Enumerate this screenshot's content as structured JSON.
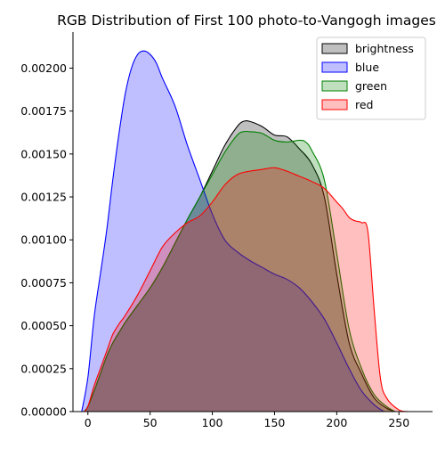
{
  "chart_data": {
    "type": "area",
    "title": "RGB Distribution of First 100 photo-to-Vangogh images",
    "xlabel": "",
    "ylabel": "",
    "xlim": [
      -12,
      277
    ],
    "ylim": [
      0,
      0.00221
    ],
    "grid": false,
    "legend_position": "top-right",
    "x_ticks": [
      0,
      50,
      100,
      150,
      200,
      250
    ],
    "y_ticks": [
      0.0,
      0.00025,
      0.0005,
      0.00075,
      0.001,
      0.00125,
      0.0015,
      0.00175,
      0.002
    ],
    "y_tick_labels": [
      "0.00000",
      "0.00025",
      "0.00050",
      "0.00075",
      "0.00100",
      "0.00125",
      "0.00150",
      "0.00175",
      "0.00200"
    ],
    "x_tick_labels": [
      "0",
      "50",
      "100",
      "150",
      "200",
      "250"
    ],
    "series": [
      {
        "name": "brightness",
        "color": "#000000",
        "points": [
          [
            -3,
            0
          ],
          [
            0,
            3e-05
          ],
          [
            5,
            0.00012
          ],
          [
            10,
            0.00022
          ],
          [
            15,
            0.00032
          ],
          [
            20,
            0.0004
          ],
          [
            25,
            0.00046
          ],
          [
            30,
            0.00052
          ],
          [
            40,
            0.00062
          ],
          [
            50,
            0.00072
          ],
          [
            60,
            0.00084
          ],
          [
            70,
            0.00098
          ],
          [
            80,
            0.00112
          ],
          [
            90,
            0.00125
          ],
          [
            100,
            0.0014
          ],
          [
            110,
            0.00155
          ],
          [
            120,
            0.00166
          ],
          [
            125,
            0.00169
          ],
          [
            130,
            0.00169
          ],
          [
            140,
            0.00166
          ],
          [
            150,
            0.00161
          ],
          [
            160,
            0.0016
          ],
          [
            170,
            0.00153
          ],
          [
            180,
            0.00144
          ],
          [
            190,
            0.00125
          ],
          [
            200,
            0.0008
          ],
          [
            210,
            0.0004
          ],
          [
            220,
            0.00022
          ],
          [
            230,
            8e-05
          ],
          [
            240,
            2e-05
          ],
          [
            247,
            0
          ]
        ]
      },
      {
        "name": "blue",
        "color": "#0000ff",
        "points": [
          [
            -5,
            0
          ],
          [
            0,
            0.0002
          ],
          [
            5,
            0.00055
          ],
          [
            10,
            0.0008
          ],
          [
            15,
            0.00105
          ],
          [
            20,
            0.00135
          ],
          [
            25,
            0.00162
          ],
          [
            30,
            0.00185
          ],
          [
            35,
            0.002
          ],
          [
            40,
            0.00208
          ],
          [
            45,
            0.0021
          ],
          [
            50,
            0.00208
          ],
          [
            55,
            0.00203
          ],
          [
            60,
            0.00194
          ],
          [
            70,
            0.00178
          ],
          [
            80,
            0.00155
          ],
          [
            90,
            0.00135
          ],
          [
            100,
            0.00115
          ],
          [
            110,
            0.001
          ],
          [
            120,
            0.00093
          ],
          [
            130,
            0.00088
          ],
          [
            140,
            0.00084
          ],
          [
            150,
            0.0008
          ],
          [
            160,
            0.00077
          ],
          [
            170,
            0.00072
          ],
          [
            180,
            0.00064
          ],
          [
            190,
            0.00054
          ],
          [
            200,
            0.0004
          ],
          [
            210,
            0.00025
          ],
          [
            220,
            0.00012
          ],
          [
            230,
            4e-05
          ],
          [
            238,
            0
          ]
        ]
      },
      {
        "name": "green",
        "color": "#008000",
        "points": [
          [
            -3,
            0
          ],
          [
            0,
            3e-05
          ],
          [
            5,
            0.00012
          ],
          [
            10,
            0.00022
          ],
          [
            15,
            0.00032
          ],
          [
            20,
            0.0004
          ],
          [
            25,
            0.00046
          ],
          [
            30,
            0.00052
          ],
          [
            40,
            0.00062
          ],
          [
            50,
            0.00072
          ],
          [
            60,
            0.00084
          ],
          [
            70,
            0.00098
          ],
          [
            80,
            0.00112
          ],
          [
            90,
            0.00125
          ],
          [
            100,
            0.00138
          ],
          [
            110,
            0.00151
          ],
          [
            120,
            0.00161
          ],
          [
            125,
            0.00163
          ],
          [
            130,
            0.00163
          ],
          [
            140,
            0.00162
          ],
          [
            150,
            0.00158
          ],
          [
            160,
            0.00157
          ],
          [
            170,
            0.00158
          ],
          [
            175,
            0.00157
          ],
          [
            180,
            0.00152
          ],
          [
            190,
            0.00135
          ],
          [
            200,
            0.00092
          ],
          [
            210,
            0.00048
          ],
          [
            220,
            0.00025
          ],
          [
            230,
            0.0001
          ],
          [
            240,
            3e-05
          ],
          [
            247,
            0
          ]
        ]
      },
      {
        "name": "red",
        "color": "#ff0000",
        "points": [
          [
            -3,
            0
          ],
          [
            0,
            3e-05
          ],
          [
            5,
            0.00015
          ],
          [
            10,
            0.00025
          ],
          [
            15,
            0.00035
          ],
          [
            20,
            0.00045
          ],
          [
            25,
            0.00051
          ],
          [
            30,
            0.00056
          ],
          [
            40,
            0.00068
          ],
          [
            50,
            0.00082
          ],
          [
            60,
            0.00096
          ],
          [
            70,
            0.00104
          ],
          [
            80,
            0.0011
          ],
          [
            90,
            0.00114
          ],
          [
            100,
            0.00122
          ],
          [
            110,
            0.00132
          ],
          [
            120,
            0.00138
          ],
          [
            130,
            0.0014
          ],
          [
            140,
            0.00141
          ],
          [
            150,
            0.00142
          ],
          [
            160,
            0.0014
          ],
          [
            170,
            0.00137
          ],
          [
            180,
            0.00134
          ],
          [
            190,
            0.0013
          ],
          [
            200,
            0.00122
          ],
          [
            205,
            0.00118
          ],
          [
            210,
            0.00113
          ],
          [
            215,
            0.00111
          ],
          [
            220,
            0.0011
          ],
          [
            225,
            0.00105
          ],
          [
            230,
            0.0006
          ],
          [
            235,
            0.0002
          ],
          [
            240,
            8e-05
          ],
          [
            250,
            1e-05
          ],
          [
            258,
            0
          ]
        ]
      }
    ]
  }
}
